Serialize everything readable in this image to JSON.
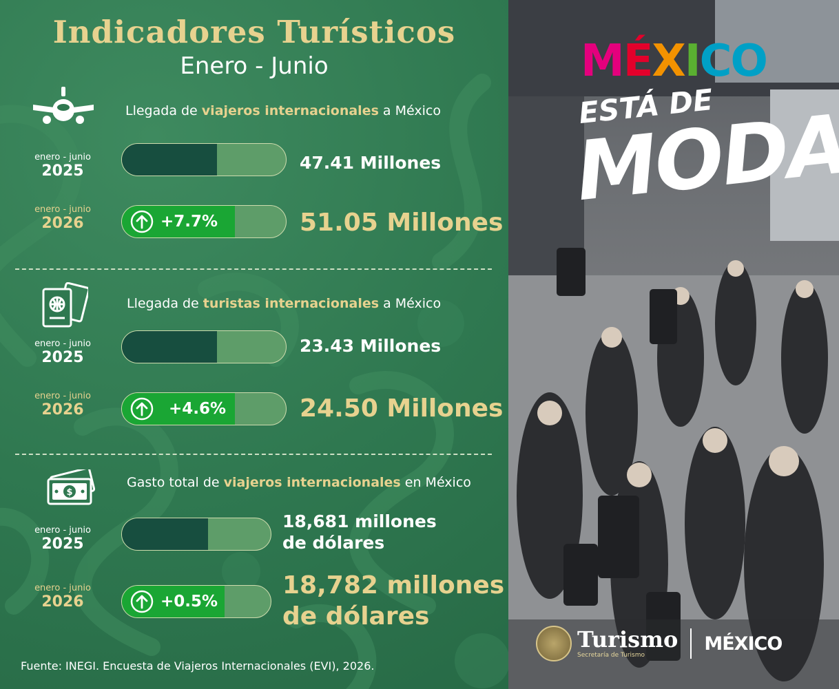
{
  "header": {
    "title": "Indicadores Turísticos",
    "subtitle": "Enero - Junio"
  },
  "chart_data": [
    {
      "type": "bar",
      "title_parts": [
        "Llegada de ",
        "viajeros internacionales",
        " a México"
      ],
      "categories": [
        "2025",
        "2026"
      ],
      "period_label": "enero - junio",
      "values": [
        47.41,
        51.05
      ],
      "unit": "Millones",
      "change": "+7.7%",
      "value_labels": [
        "47.41 Millones",
        "51.05 Millones"
      ]
    },
    {
      "type": "bar",
      "title_parts": [
        "Llegada de ",
        "turistas internacionales",
        " a México"
      ],
      "categories": [
        "2025",
        "2026"
      ],
      "period_label": "enero - junio",
      "values": [
        23.43,
        24.5
      ],
      "unit": "Millones",
      "change": "+4.6%",
      "value_labels": [
        "23.43 Millones",
        "24.50 Millones"
      ]
    },
    {
      "type": "bar",
      "title_parts": [
        "Gasto total de ",
        "viajeros internacionales",
        " en México"
      ],
      "categories": [
        "2025",
        "2026"
      ],
      "period_label": "enero - junio",
      "values": [
        18681,
        18782
      ],
      "unit": "millones de dólares",
      "change": "+0.5%",
      "value_labels": [
        [
          "18,681 millones",
          "de dólares"
        ],
        [
          "18,782 millones",
          "de dólares"
        ]
      ]
    }
  ],
  "source": "Fuente: INEGI. Encuesta de Viajeros Internacionales (EVI), 2026.",
  "branding": {
    "logo_letters": [
      "M",
      "É",
      "X",
      "I",
      "C",
      "O"
    ],
    "logo_colors": [
      "#e5007d",
      "#e4002b",
      "#f39200",
      "#5ab031",
      "#00a0c6",
      "#00a0c6"
    ],
    "tagline_top": "ESTÁ DE",
    "tagline_main": "MODA",
    "turismo": "Turismo",
    "turismo_sub": "Secretaría de Turismo",
    "mexico_small": "MÉXICO"
  },
  "icons": {
    "section1": "airplane-icon",
    "section2": "passport-icon",
    "section3": "money-icon",
    "trend": "arrow-up-circle-icon"
  },
  "colors": {
    "gold": "#e7d28f",
    "dark_bar": "#174e3f",
    "green_badge": "#1aa634",
    "panel": "#2f7850"
  }
}
